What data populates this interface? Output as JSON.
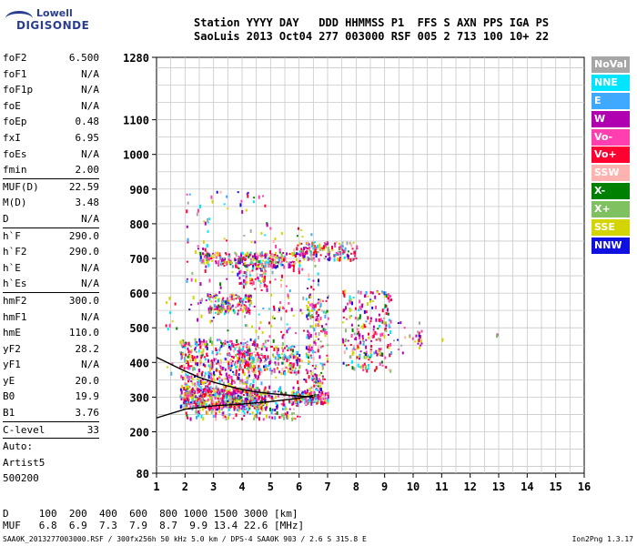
{
  "logo": {
    "line1": "Lowell",
    "line2": "DIGISONDE"
  },
  "header": {
    "line1": "Station YYYY DAY   DDD HHMMSS P1  FFS S AXN PPS IGA PS",
    "line2": "SaoLuis 2013 Oct04 277 003000 RSF 005 2 713 100 10+ 22"
  },
  "params_group1": [
    {
      "name": "foF2",
      "value": "6.500"
    },
    {
      "name": "foF1",
      "value": "N/A"
    },
    {
      "name": "foF1p",
      "value": "N/A"
    },
    {
      "name": "foE",
      "value": "N/A"
    },
    {
      "name": "foEp",
      "value": "0.48"
    },
    {
      "name": "fxI",
      "value": "6.95"
    },
    {
      "name": "foEs",
      "value": "N/A"
    },
    {
      "name": "fmin",
      "value": "2.00"
    }
  ],
  "params_group2": [
    {
      "name": "MUF(D)",
      "value": "22.59"
    },
    {
      "name": "M(D)",
      "value": "3.48"
    },
    {
      "name": "D",
      "value": "N/A"
    }
  ],
  "params_group3": [
    {
      "name": "h`F",
      "value": "290.0"
    },
    {
      "name": "h`F2",
      "value": "290.0"
    },
    {
      "name": "h`E",
      "value": "N/A"
    },
    {
      "name": "h`Es",
      "value": "N/A"
    }
  ],
  "params_group4": [
    {
      "name": "hmF2",
      "value": "300.0"
    },
    {
      "name": "hmF1",
      "value": "N/A"
    },
    {
      "name": "hmE",
      "value": "110.0"
    },
    {
      "name": "yF2",
      "value": "28.2"
    },
    {
      "name": "yF1",
      "value": "N/A"
    },
    {
      "name": "yE",
      "value": "20.0"
    },
    {
      "name": "B0",
      "value": "19.9"
    },
    {
      "name": "B1",
      "value": "3.76"
    }
  ],
  "params_group5": [
    {
      "name": "C-level",
      "value": "33"
    }
  ],
  "auto": {
    "line1": "Auto:",
    "line2": "Artist5",
    "line3": "500200"
  },
  "legend": [
    {
      "label": "NoVal",
      "color": "#a6a6a6"
    },
    {
      "label": "NNE",
      "color": "#00e5ff"
    },
    {
      "label": "E",
      "color": "#3fa9ff"
    },
    {
      "label": "W",
      "color": "#b000b0"
    },
    {
      "label": "Vo-",
      "color": "#ff3fb0"
    },
    {
      "label": "Vo+",
      "color": "#ff0030"
    },
    {
      "label": "SSW",
      "color": "#ffb3b0"
    },
    {
      "label": "X-",
      "color": "#008000"
    },
    {
      "label": "X+",
      "color": "#7fc060"
    },
    {
      "label": "SSE",
      "color": "#d4d400"
    },
    {
      "label": "NNW",
      "color": "#1010e0"
    }
  ],
  "chart_data": {
    "type": "scatter",
    "xlim": [
      1,
      16
    ],
    "ylim": [
      80,
      1280
    ],
    "x_ticks": [
      "1",
      "2",
      "3",
      "4",
      "5",
      "6",
      "7",
      "8",
      "9",
      "10",
      "11",
      "12",
      "13",
      "14",
      "15",
      "16"
    ],
    "y_tick_labels": [
      {
        "value": 1280,
        "label": "1280"
      },
      {
        "value": 1100,
        "label": "1100"
      },
      {
        "value": 1000,
        "label": "1000"
      },
      {
        "value": 900,
        "label": "900"
      },
      {
        "value": 800,
        "label": "800"
      },
      {
        "value": 700,
        "label": "700"
      },
      {
        "value": 600,
        "label": "600"
      },
      {
        "value": 500,
        "label": "500"
      },
      {
        "value": 400,
        "label": "400"
      },
      {
        "value": 300,
        "label": "300"
      },
      {
        "value": 200,
        "label": "200"
      },
      {
        "value": 80,
        "label": "80"
      }
    ],
    "grid": true,
    "echo_clusters": [
      {
        "x": [
          1.8,
          4.8
        ],
        "y": [
          270,
          330
        ],
        "n": 520
      },
      {
        "x": [
          1.8,
          4.5
        ],
        "y": [
          330,
          470
        ],
        "n": 380
      },
      {
        "x": [
          2.0,
          6.0
        ],
        "y": [
          240,
          320
        ],
        "n": 260
      },
      {
        "x": [
          3.8,
          6.0
        ],
        "y": [
          370,
          450
        ],
        "n": 200
      },
      {
        "x": [
          5.7,
          7.0
        ],
        "y": [
          285,
          320
        ],
        "n": 120
      },
      {
        "x": [
          2.5,
          6.0
        ],
        "y": [
          680,
          720
        ],
        "n": 260
      },
      {
        "x": [
          6.0,
          8.0
        ],
        "y": [
          700,
          750
        ],
        "n": 160
      },
      {
        "x": [
          2.8,
          4.3
        ],
        "y": [
          545,
          600
        ],
        "n": 150
      },
      {
        "x": [
          3.8,
          4.8
        ],
        "y": [
          620,
          680
        ],
        "n": 60
      },
      {
        "x": [
          6.2,
          7.0
        ],
        "y": [
          280,
          600
        ],
        "n": 170
      },
      {
        "x": [
          7.5,
          9.2
        ],
        "y": [
          380,
          610
        ],
        "n": 240
      },
      {
        "x": [
          2.0,
          5.0
        ],
        "y": [
          320,
          900
        ],
        "n": 200
      },
      {
        "x": [
          5.0,
          6.8
        ],
        "y": [
          320,
          800
        ],
        "n": 130
      },
      {
        "x": [
          9.0,
          10.3
        ],
        "y": [
          430,
          520
        ],
        "n": 25
      },
      {
        "x": [
          10.0,
          10.3
        ],
        "y": [
          440,
          500
        ],
        "n": 8
      },
      {
        "x": [
          11.0,
          11.0
        ],
        "y": [
          470,
          470
        ],
        "n": 2
      },
      {
        "x": [
          12.9,
          13.0
        ],
        "y": [
          480,
          490
        ],
        "n": 2
      },
      {
        "x": [
          1.3,
          1.8
        ],
        "y": [
          350,
          590
        ],
        "n": 12
      }
    ],
    "trace_curve_1": {
      "x": [
        1,
        2,
        3,
        4,
        5,
        6,
        6.5
      ],
      "y": [
        240,
        265,
        275,
        280,
        287,
        297,
        305
      ]
    },
    "trace_curve_2": {
      "x": [
        1,
        1.5,
        2,
        2.5,
        3,
        3.5,
        4,
        4.5,
        5,
        6,
        6.5
      ],
      "y": [
        415,
        395,
        375,
        357,
        343,
        332,
        322,
        315,
        310,
        303,
        300
      ]
    }
  },
  "muf_table": {
    "line1": "D     100  200  400  600  800 1000 1500 3000 [km]",
    "line2": "MUF   6.8  6.9  7.3  7.9  8.7  9.9 13.4 22.6 [MHz]"
  },
  "footer": "SAA0K_2013277003000.RSF / 300fx256h 50 kHz 5.0 km / DPS-4 SAA0K 903 / 2.6 S 315.8 E",
  "version": "Ion2Png 1.3.17"
}
